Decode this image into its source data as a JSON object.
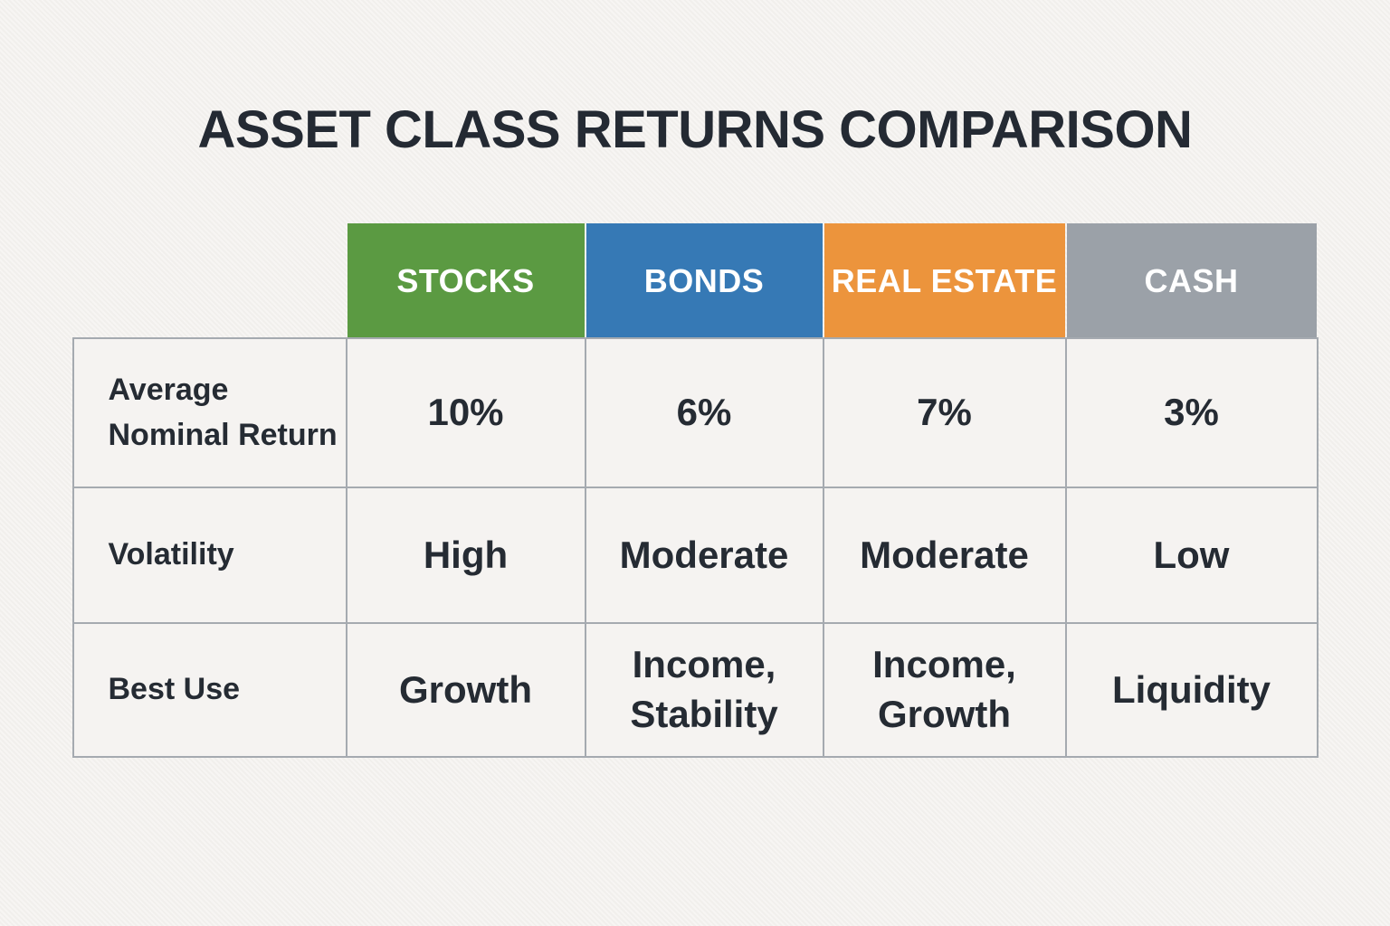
{
  "title": "ASSET CLASS RETURNS COMPARISON",
  "table": {
    "columns": [
      {
        "label": "STOCKS",
        "color": "#5b9a42"
      },
      {
        "label": "BONDS",
        "color": "#3679b5"
      },
      {
        "label": "REAL ESTATE",
        "color": "#ec943c"
      },
      {
        "label": "CASH",
        "color": "#9ba1a8"
      }
    ],
    "rows": [
      {
        "label": "Average\nNominal Return",
        "values": [
          "10%",
          "6%",
          "7%",
          "3%"
        ]
      },
      {
        "label": "Volatility",
        "values": [
          "High",
          "Moderate",
          "Moderate",
          "Low"
        ]
      },
      {
        "label": "Best Use",
        "values": [
          "Growth",
          "Income,\nStability",
          "Income,\nGrowth",
          "Liquidity"
        ]
      }
    ]
  },
  "chart_data": {
    "type": "table",
    "title": "ASSET CLASS RETURNS COMPARISON",
    "columns": [
      "STOCKS",
      "BONDS",
      "REAL ESTATE",
      "CASH"
    ],
    "column_colors": [
      "#5b9a42",
      "#3679b5",
      "#ec943c",
      "#9ba1a8"
    ],
    "row_labels": [
      "Average Nominal Return",
      "Volatility",
      "Best Use"
    ],
    "rows": [
      [
        "10%",
        "6%",
        "7%",
        "3%"
      ],
      [
        "High",
        "Moderate",
        "Moderate",
        "Low"
      ],
      [
        "Growth",
        "Income, Stability",
        "Income, Growth",
        "Liquidity"
      ]
    ]
  },
  "colors": {
    "background": "#f4f2ef",
    "grid_border": "#a5aab0",
    "text": "#252b33"
  }
}
